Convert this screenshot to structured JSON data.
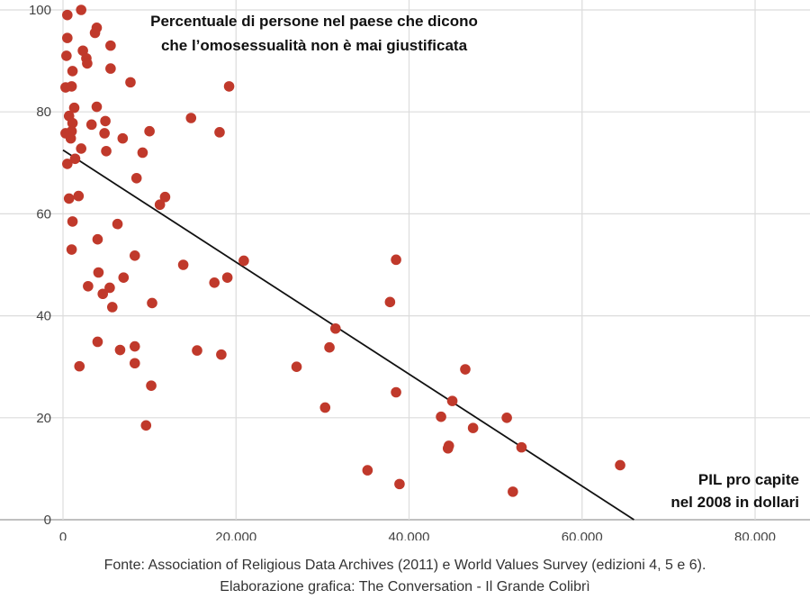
{
  "chart_data": {
    "type": "scatter",
    "title": "Percentuale di persone nel paese che dicono\nche l’omosessualità non è mai giustificata",
    "xlabel": "PIL pro capite\nnel 2008 in dollari",
    "ylabel": "",
    "xlim": [
      0,
      80000
    ],
    "ylim": [
      0,
      100
    ],
    "x_ticks": [
      0,
      20000,
      40000,
      60000,
      80000
    ],
    "x_tick_labels": [
      "0",
      "20.000",
      "40.000",
      "60.000",
      "80.000"
    ],
    "y_ticks": [
      0,
      20,
      40,
      60,
      80,
      100
    ],
    "y_tick_labels": [
      "0",
      "20",
      "40",
      "60",
      "80",
      "100"
    ],
    "grid": true,
    "point_color": "#c0392b",
    "trendline": {
      "x": [
        0,
        66000
      ],
      "y": [
        72.5,
        0
      ],
      "color": "#111111"
    },
    "points": [
      {
        "x": 500,
        "y": 99
      },
      {
        "x": 2100,
        "y": 100
      },
      {
        "x": 500,
        "y": 94.5
      },
      {
        "x": 3900,
        "y": 96.5
      },
      {
        "x": 3700,
        "y": 95.5
      },
      {
        "x": 2300,
        "y": 92
      },
      {
        "x": 5500,
        "y": 93
      },
      {
        "x": 2700,
        "y": 90.5
      },
      {
        "x": 400,
        "y": 91
      },
      {
        "x": 2800,
        "y": 89.5
      },
      {
        "x": 1100,
        "y": 88
      },
      {
        "x": 5500,
        "y": 88.5
      },
      {
        "x": 7800,
        "y": 85.8
      },
      {
        "x": 300,
        "y": 84.8
      },
      {
        "x": 1000,
        "y": 85
      },
      {
        "x": 19200,
        "y": 85
      },
      {
        "x": 3900,
        "y": 81
      },
      {
        "x": 1300,
        "y": 80.8
      },
      {
        "x": 700,
        "y": 79.2
      },
      {
        "x": 4900,
        "y": 78.2
      },
      {
        "x": 14800,
        "y": 78.8
      },
      {
        "x": 1100,
        "y": 77.8
      },
      {
        "x": 3300,
        "y": 77.5
      },
      {
        "x": 1000,
        "y": 76.2
      },
      {
        "x": 300,
        "y": 75.8
      },
      {
        "x": 4800,
        "y": 75.8
      },
      {
        "x": 10000,
        "y": 76.2
      },
      {
        "x": 18100,
        "y": 76
      },
      {
        "x": 900,
        "y": 74.8
      },
      {
        "x": 6900,
        "y": 74.8
      },
      {
        "x": 2100,
        "y": 72.8
      },
      {
        "x": 5000,
        "y": 72.3
      },
      {
        "x": 9200,
        "y": 72
      },
      {
        "x": 1400,
        "y": 70.8
      },
      {
        "x": 500,
        "y": 69.8
      },
      {
        "x": 8500,
        "y": 67
      },
      {
        "x": 700,
        "y": 63
      },
      {
        "x": 1800,
        "y": 63.5
      },
      {
        "x": 11800,
        "y": 63.3
      },
      {
        "x": 11200,
        "y": 61.8
      },
      {
        "x": 1100,
        "y": 58.5
      },
      {
        "x": 6300,
        "y": 58
      },
      {
        "x": 4000,
        "y": 55
      },
      {
        "x": 1000,
        "y": 53
      },
      {
        "x": 8300,
        "y": 51.8
      },
      {
        "x": 20900,
        "y": 50.8
      },
      {
        "x": 38500,
        "y": 51
      },
      {
        "x": 13900,
        "y": 50
      },
      {
        "x": 4100,
        "y": 48.5
      },
      {
        "x": 7000,
        "y": 47.5
      },
      {
        "x": 19000,
        "y": 47.5
      },
      {
        "x": 17500,
        "y": 46.5
      },
      {
        "x": 2900,
        "y": 45.8
      },
      {
        "x": 5400,
        "y": 45.5
      },
      {
        "x": 4600,
        "y": 44.3
      },
      {
        "x": 10300,
        "y": 42.5
      },
      {
        "x": 37800,
        "y": 42.7
      },
      {
        "x": 5700,
        "y": 41.7
      },
      {
        "x": 31500,
        "y": 37.5
      },
      {
        "x": 4000,
        "y": 34.9
      },
      {
        "x": 8300,
        "y": 34
      },
      {
        "x": 30800,
        "y": 33.8
      },
      {
        "x": 6600,
        "y": 33.3
      },
      {
        "x": 15500,
        "y": 33.2
      },
      {
        "x": 18300,
        "y": 32.4
      },
      {
        "x": 8300,
        "y": 30.7
      },
      {
        "x": 1900,
        "y": 30.1
      },
      {
        "x": 27000,
        "y": 30
      },
      {
        "x": 46500,
        "y": 29.5
      },
      {
        "x": 10200,
        "y": 26.3
      },
      {
        "x": 38500,
        "y": 25
      },
      {
        "x": 45000,
        "y": 23.3
      },
      {
        "x": 30300,
        "y": 22
      },
      {
        "x": 43700,
        "y": 20.2
      },
      {
        "x": 51300,
        "y": 20
      },
      {
        "x": 9600,
        "y": 18.5
      },
      {
        "x": 47400,
        "y": 18
      },
      {
        "x": 44600,
        "y": 14.5
      },
      {
        "x": 44500,
        "y": 14
      },
      {
        "x": 53000,
        "y": 14.2
      },
      {
        "x": 64400,
        "y": 10.7
      },
      {
        "x": 35200,
        "y": 9.7
      },
      {
        "x": 38900,
        "y": 7
      },
      {
        "x": 52000,
        "y": 5.5
      }
    ]
  },
  "source": {
    "line1": "Fonte: Association of Religious Data Archives (2011) e World Values Survey (edizioni 4, 5 e 6).",
    "line2": "Elaborazione grafica: The Conversation - Il Grande Colibrì"
  }
}
